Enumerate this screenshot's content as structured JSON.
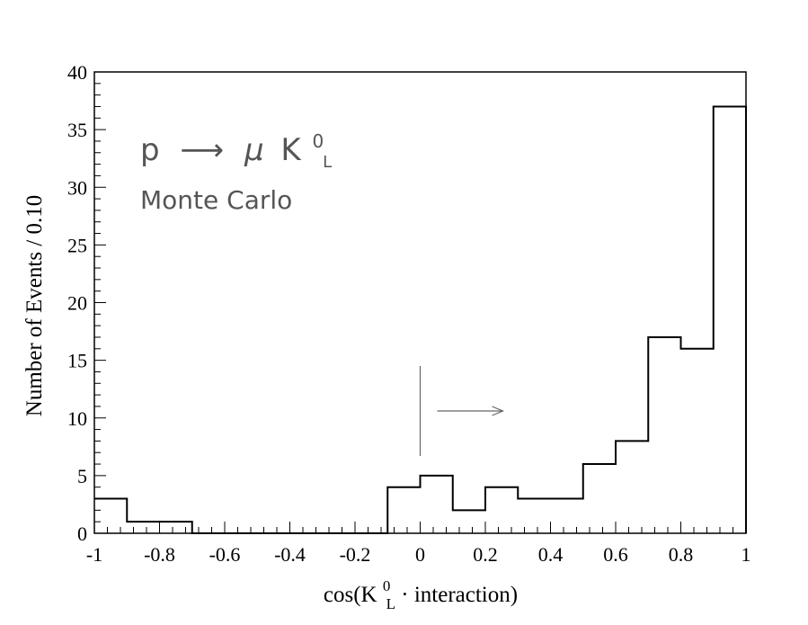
{
  "chart_data": {
    "type": "bar",
    "histogram": true,
    "bin_edges": [
      -1,
      -0.9,
      -0.8,
      -0.7,
      -0.6,
      -0.5,
      -0.4,
      -0.3,
      -0.2,
      -0.1,
      0,
      0.1,
      0.2,
      0.3,
      0.4,
      0.5,
      0.6,
      0.7,
      0.8,
      0.9,
      1
    ],
    "values": [
      3,
      1,
      1,
      0,
      0,
      0,
      0,
      0,
      0,
      4,
      5,
      2,
      4,
      3,
      3,
      6,
      8,
      17,
      16,
      37
    ],
    "xlim": [
      -1,
      1
    ],
    "ylim": [
      0,
      40
    ],
    "x_ticks": [
      "-1",
      "-0.8",
      "-0.6",
      "-0.4",
      "-0.2",
      "0",
      "0.2",
      "0.4",
      "0.6",
      "0.8",
      "1"
    ],
    "y_ticks": [
      "0",
      "5",
      "10",
      "15",
      "20",
      "25",
      "30",
      "35",
      "40"
    ],
    "ylabel": "Number of Events / 0.10",
    "xlabel": {
      "prefix": "cos(K",
      "superscript": "0",
      "subscript": "L",
      "suffix": " · interaction)"
    },
    "annotations": {
      "process": {
        "p": "p",
        "arrow": "⟶",
        "mu": "μ",
        "k": "K",
        "k_sup": "0",
        "k_sub": "L"
      },
      "source": "Monte Carlo",
      "cut_value": 0,
      "cut_direction": "right"
    },
    "grid": false,
    "line_color": "#000000",
    "annotation_color": "#555555"
  }
}
